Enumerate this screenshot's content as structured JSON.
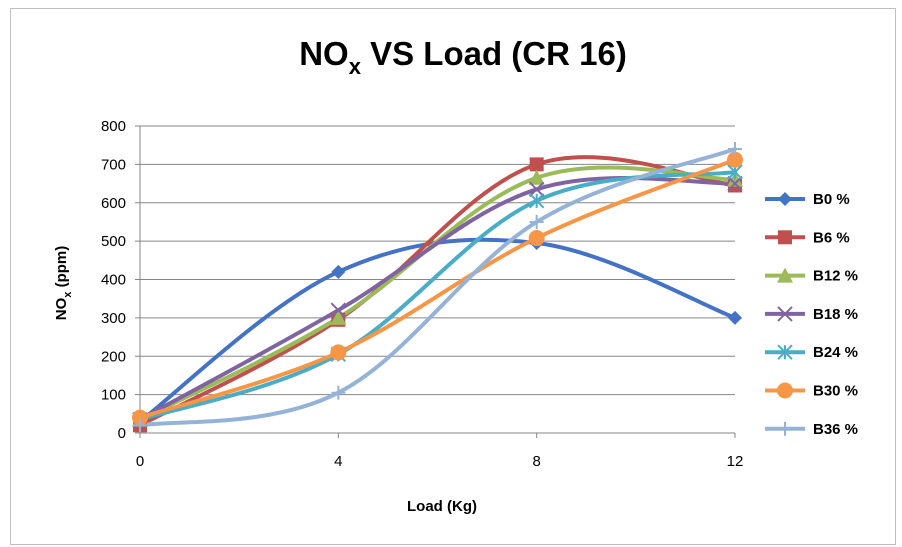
{
  "chart_data": {
    "type": "line",
    "title": "NO",
    "title_subscript": "x",
    "title_suffix": " VS Load (CR 16)",
    "xlabel": "Load (Kg)",
    "ylabel": "NO",
    "ylabel_subscript": "x",
    "ylabel_suffix": " (ppm)",
    "x": [
      0,
      4,
      8,
      12
    ],
    "x_ticks": [
      "0",
      "4",
      "8",
      "12"
    ],
    "xlim": [
      0,
      12
    ],
    "ylim": [
      0,
      800
    ],
    "y_ticks": [
      "0",
      "100",
      "200",
      "300",
      "400",
      "500",
      "600",
      "700",
      "800"
    ],
    "grid": true,
    "legend_position": "right",
    "series": [
      {
        "name": "B0 %",
        "values": [
          30,
          420,
          495,
          300
        ],
        "color": "#4472c4",
        "marker": "diamond"
      },
      {
        "name": "B6 %",
        "values": [
          20,
          295,
          700,
          645
        ],
        "color": "#c0504d",
        "marker": "square"
      },
      {
        "name": "B12 %",
        "values": [
          35,
          300,
          665,
          660
        ],
        "color": "#9bbb59",
        "marker": "triangle"
      },
      {
        "name": "B18 %",
        "values": [
          35,
          320,
          635,
          650
        ],
        "color": "#8064a2",
        "marker": "x"
      },
      {
        "name": "B24 %",
        "values": [
          35,
          205,
          605,
          680
        ],
        "color": "#4bacc6",
        "marker": "asterisk"
      },
      {
        "name": "B30 %",
        "values": [
          40,
          210,
          508,
          712
        ],
        "color": "#f79646",
        "marker": "circle"
      },
      {
        "name": "B36 %",
        "values": [
          20,
          105,
          550,
          740
        ],
        "color": "#95b3d7",
        "marker": "plus"
      }
    ]
  }
}
